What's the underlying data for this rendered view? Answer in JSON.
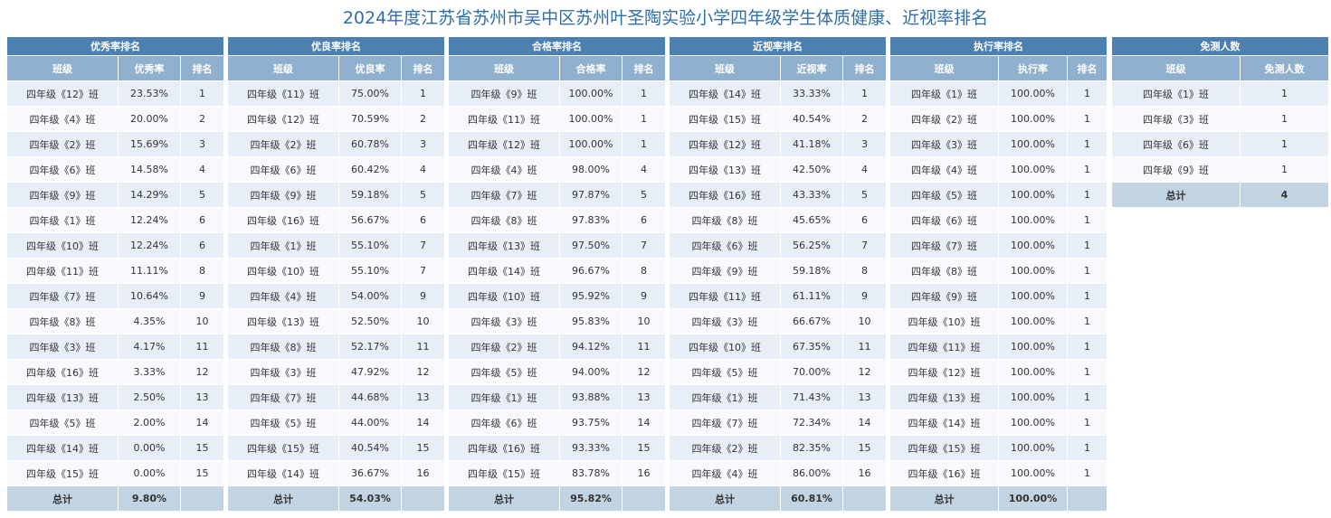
{
  "title": "2024年度江苏省苏州市吴中区苏州叶圣陶实验小学四年级学生体质健康、近视率排名",
  "panels": [
    {
      "id": "excellent",
      "title": "优秀率排名",
      "headers": [
        "班级",
        "优秀率",
        "排名"
      ],
      "rows": [
        [
          "四年级《12》班",
          "23.53%",
          "1"
        ],
        [
          "四年级《4》班",
          "20.00%",
          "2"
        ],
        [
          "四年级《2》班",
          "15.69%",
          "3"
        ],
        [
          "四年级《6》班",
          "14.58%",
          "4"
        ],
        [
          "四年级《9》班",
          "14.29%",
          "5"
        ],
        [
          "四年级《1》班",
          "12.24%",
          "6"
        ],
        [
          "四年级《10》班",
          "12.24%",
          "6"
        ],
        [
          "四年级《11》班",
          "11.11%",
          "8"
        ],
        [
          "四年级《7》班",
          "10.64%",
          "9"
        ],
        [
          "四年级《8》班",
          "4.35%",
          "10"
        ],
        [
          "四年级《3》班",
          "4.17%",
          "11"
        ],
        [
          "四年级《16》班",
          "3.33%",
          "12"
        ],
        [
          "四年级《13》班",
          "2.50%",
          "13"
        ],
        [
          "四年级《5》班",
          "2.00%",
          "14"
        ],
        [
          "四年级《14》班",
          "0.00%",
          "15"
        ],
        [
          "四年级《15》班",
          "0.00%",
          "15"
        ]
      ],
      "total": [
        "总计",
        "9.80%",
        ""
      ]
    },
    {
      "id": "good",
      "title": "优良率排名",
      "headers": [
        "班级",
        "优良率",
        "排名"
      ],
      "rows": [
        [
          "四年级《11》班",
          "75.00%",
          "1"
        ],
        [
          "四年级《12》班",
          "70.59%",
          "2"
        ],
        [
          "四年级《2》班",
          "60.78%",
          "3"
        ],
        [
          "四年级《6》班",
          "60.42%",
          "4"
        ],
        [
          "四年级《9》班",
          "59.18%",
          "5"
        ],
        [
          "四年级《16》班",
          "56.67%",
          "6"
        ],
        [
          "四年级《1》班",
          "55.10%",
          "7"
        ],
        [
          "四年级《10》班",
          "55.10%",
          "7"
        ],
        [
          "四年级《4》班",
          "54.00%",
          "9"
        ],
        [
          "四年级《13》班",
          "52.50%",
          "10"
        ],
        [
          "四年级《8》班",
          "52.17%",
          "11"
        ],
        [
          "四年级《3》班",
          "47.92%",
          "12"
        ],
        [
          "四年级《7》班",
          "44.68%",
          "13"
        ],
        [
          "四年级《5》班",
          "44.00%",
          "14"
        ],
        [
          "四年级《15》班",
          "40.54%",
          "15"
        ],
        [
          "四年级《14》班",
          "36.67%",
          "16"
        ]
      ],
      "total": [
        "总计",
        "54.03%",
        ""
      ]
    },
    {
      "id": "pass",
      "title": "合格率排名",
      "headers": [
        "班级",
        "合格率",
        "排名"
      ],
      "rows": [
        [
          "四年级《9》班",
          "100.00%",
          "1"
        ],
        [
          "四年级《11》班",
          "100.00%",
          "1"
        ],
        [
          "四年级《12》班",
          "100.00%",
          "1"
        ],
        [
          "四年级《4》班",
          "98.00%",
          "4"
        ],
        [
          "四年级《7》班",
          "97.87%",
          "5"
        ],
        [
          "四年级《8》班",
          "97.83%",
          "6"
        ],
        [
          "四年级《13》班",
          "97.50%",
          "7"
        ],
        [
          "四年级《14》班",
          "96.67%",
          "8"
        ],
        [
          "四年级《10》班",
          "95.92%",
          "9"
        ],
        [
          "四年级《3》班",
          "95.83%",
          "10"
        ],
        [
          "四年级《2》班",
          "94.12%",
          "11"
        ],
        [
          "四年级《5》班",
          "94.00%",
          "12"
        ],
        [
          "四年级《1》班",
          "93.88%",
          "13"
        ],
        [
          "四年级《6》班",
          "93.75%",
          "14"
        ],
        [
          "四年级《16》班",
          "93.33%",
          "15"
        ],
        [
          "四年级《15》班",
          "83.78%",
          "16"
        ]
      ],
      "total": [
        "总计",
        "95.82%",
        ""
      ]
    },
    {
      "id": "myopia",
      "title": "近视率排名",
      "headers": [
        "班级",
        "近视率",
        "排名"
      ],
      "rows": [
        [
          "四年级《14》班",
          "33.33%",
          "1"
        ],
        [
          "四年级《15》班",
          "40.54%",
          "2"
        ],
        [
          "四年级《12》班",
          "41.18%",
          "3"
        ],
        [
          "四年级《13》班",
          "42.50%",
          "4"
        ],
        [
          "四年级《16》班",
          "43.33%",
          "5"
        ],
        [
          "四年级《8》班",
          "45.65%",
          "6"
        ],
        [
          "四年级《6》班",
          "56.25%",
          "7"
        ],
        [
          "四年级《9》班",
          "59.18%",
          "8"
        ],
        [
          "四年级《11》班",
          "61.11%",
          "9"
        ],
        [
          "四年级《3》班",
          "66.67%",
          "10"
        ],
        [
          "四年级《10》班",
          "67.35%",
          "11"
        ],
        [
          "四年级《5》班",
          "70.00%",
          "12"
        ],
        [
          "四年级《1》班",
          "71.43%",
          "13"
        ],
        [
          "四年级《7》班",
          "72.34%",
          "14"
        ],
        [
          "四年级《2》班",
          "82.35%",
          "15"
        ],
        [
          "四年级《4》班",
          "86.00%",
          "16"
        ]
      ],
      "total": [
        "总计",
        "60.81%",
        ""
      ]
    },
    {
      "id": "execution",
      "title": "执行率排名",
      "headers": [
        "班级",
        "执行率",
        "排名"
      ],
      "rows": [
        [
          "四年级《1》班",
          "100.00%",
          "1"
        ],
        [
          "四年级《2》班",
          "100.00%",
          "1"
        ],
        [
          "四年级《3》班",
          "100.00%",
          "1"
        ],
        [
          "四年级《4》班",
          "100.00%",
          "1"
        ],
        [
          "四年级《5》班",
          "100.00%",
          "1"
        ],
        [
          "四年级《6》班",
          "100.00%",
          "1"
        ],
        [
          "四年级《7》班",
          "100.00%",
          "1"
        ],
        [
          "四年级《8》班",
          "100.00%",
          "1"
        ],
        [
          "四年级《9》班",
          "100.00%",
          "1"
        ],
        [
          "四年级《10》班",
          "100.00%",
          "1"
        ],
        [
          "四年级《11》班",
          "100.00%",
          "1"
        ],
        [
          "四年级《12》班",
          "100.00%",
          "1"
        ],
        [
          "四年级《13》班",
          "100.00%",
          "1"
        ],
        [
          "四年级《14》班",
          "100.00%",
          "1"
        ],
        [
          "四年级《15》班",
          "100.00%",
          "1"
        ],
        [
          "四年级《16》班",
          "100.00%",
          "1"
        ]
      ],
      "total": [
        "总计",
        "100.00%",
        ""
      ]
    }
  ],
  "exempt": {
    "title": "免测人数",
    "headers": [
      "班级",
      "免测人数"
    ],
    "rows": [
      [
        "四年级《1》班",
        "1"
      ],
      [
        "四年级《3》班",
        "1"
      ],
      [
        "四年级《6》班",
        "1"
      ],
      [
        "四年级《9》班",
        "1"
      ]
    ],
    "total": [
      "总计",
      "4"
    ]
  },
  "colors": {
    "title_text": "#2f6ea8",
    "panel_title_bg": "#4b80b1",
    "header_bg": "#8fb0cf",
    "row_odd_bg": "#e8eef5",
    "row_even_bg": "#f7f9fc",
    "total_bg": "#c2d3e2"
  }
}
